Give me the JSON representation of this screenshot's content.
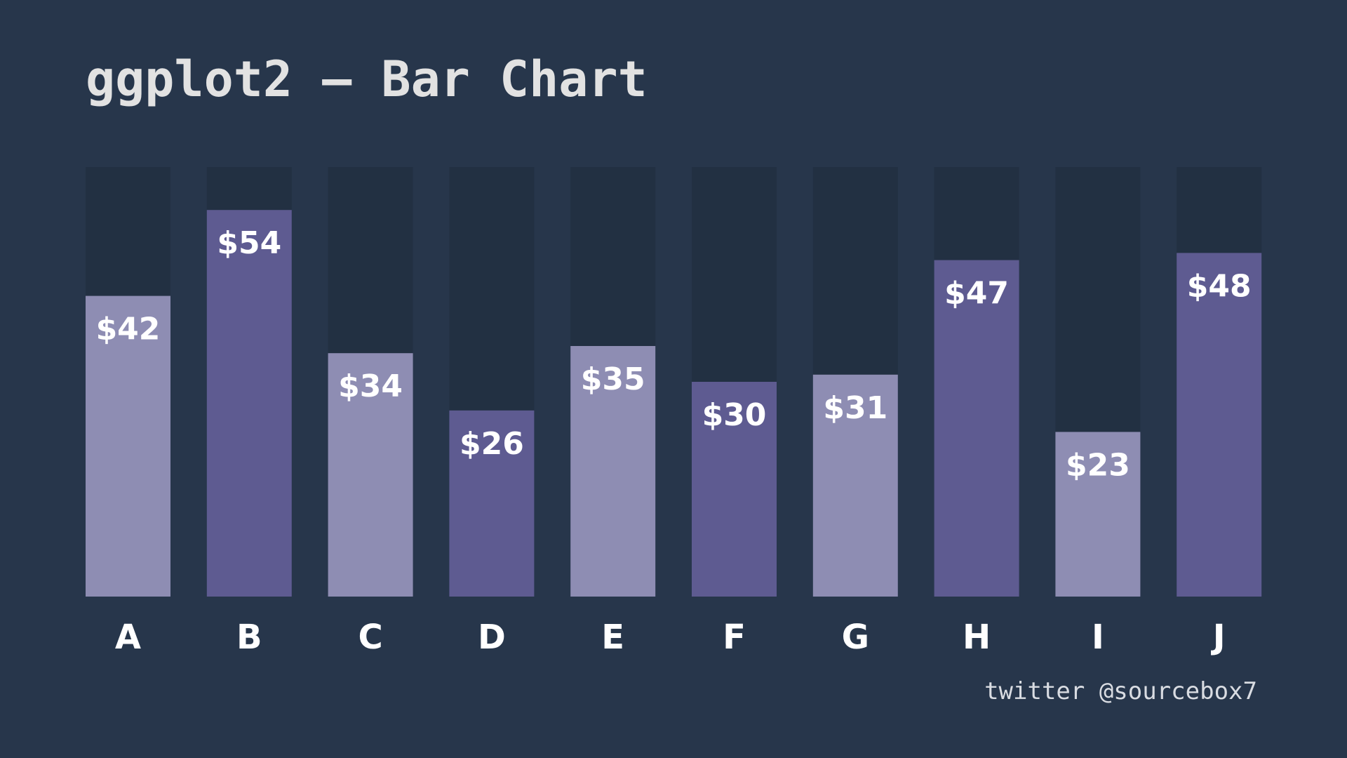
{
  "title": "ggplot2 – Bar Chart",
  "credit": "twitter @sourcebox7",
  "colors": {
    "background": "#27364b",
    "track": "#223042",
    "bar_light": "#8e8db3",
    "bar_dark": "#5e5b91",
    "label": "#ffffff",
    "title": "#e2e2e2"
  },
  "chart_data": {
    "type": "bar",
    "categories": [
      "A",
      "B",
      "C",
      "D",
      "E",
      "F",
      "G",
      "H",
      "I",
      "J"
    ],
    "values": [
      42,
      54,
      34,
      26,
      35,
      30,
      31,
      47,
      23,
      48
    ],
    "labels": [
      "$42",
      "$54",
      "$34",
      "$26",
      "$35",
      "$30",
      "$31",
      "$47",
      "$23",
      "$48"
    ],
    "bar_shade": [
      "light",
      "dark",
      "light",
      "dark",
      "light",
      "dark",
      "light",
      "dark",
      "light",
      "dark"
    ],
    "ylim": [
      0,
      60
    ],
    "grid": false,
    "title": "ggplot2 – Bar Chart",
    "xlabel": "",
    "ylabel": ""
  }
}
